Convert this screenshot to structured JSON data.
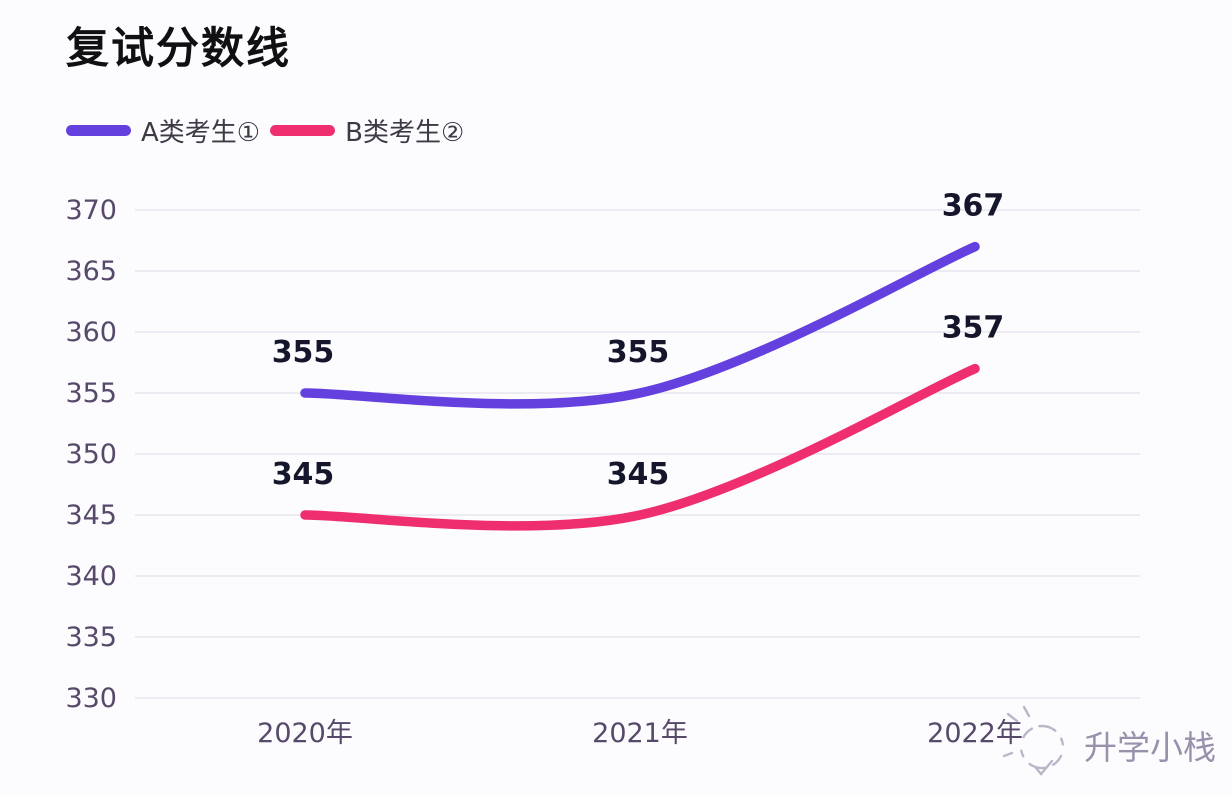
{
  "chart_data": {
    "type": "line",
    "title": "复试分数线",
    "categories": [
      "2020年",
      "2021年",
      "2022年"
    ],
    "series": [
      {
        "name": "A类考生①",
        "values": [
          355,
          355,
          367
        ],
        "color": "#6440DE"
      },
      {
        "name": "B类考生②",
        "values": [
          345,
          345,
          357
        ],
        "color": "#EE2E6E"
      }
    ],
    "ylim": [
      330,
      370
    ],
    "ytick_step": 5,
    "yticks": [
      330,
      335,
      340,
      345,
      350,
      355,
      360,
      365,
      370
    ],
    "xlabel": "",
    "ylabel": "",
    "grid": "horizontal",
    "legend_position": "top-left",
    "line_style": "smooth",
    "data_labels_visible": true,
    "style": {
      "grid_color": "#eceaf3",
      "axis_label_color": "#57496a",
      "data_label_color": "#15152b",
      "legend_text_color": "#3e3945",
      "title_color": "#101014",
      "background": "#fcfcfe"
    }
  },
  "watermark": {
    "text": "升学小栈"
  }
}
